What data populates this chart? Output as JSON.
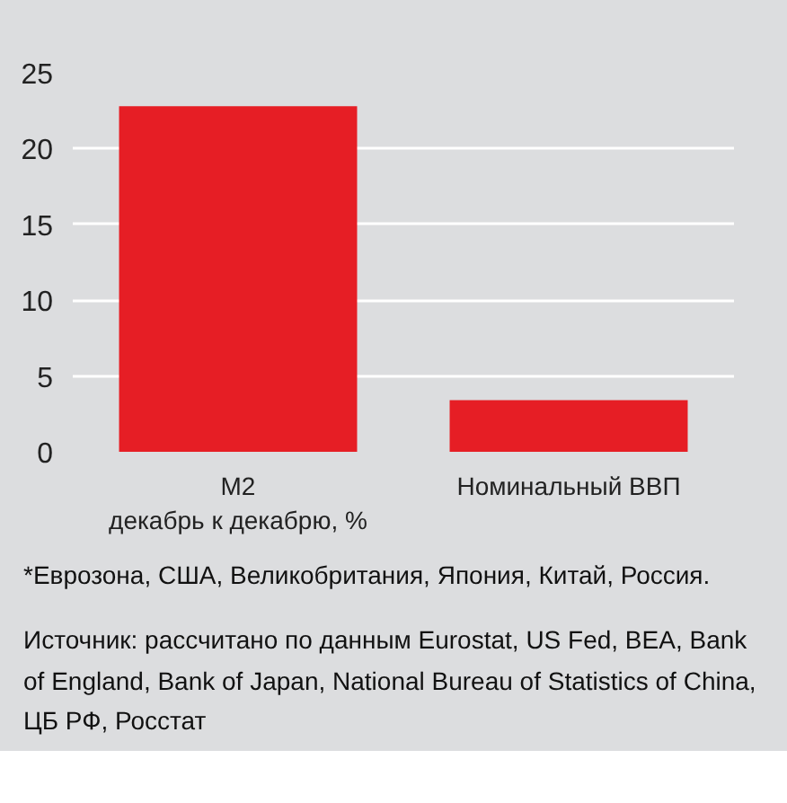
{
  "chart_data": {
    "type": "bar",
    "categories": [
      "M2\nдекабрь к декабрю, %",
      "Номинальный ВВП"
    ],
    "values": [
      22.8,
      3.4
    ],
    "color": "#e61e25",
    "ylim": [
      0,
      25
    ],
    "yticks": [
      0,
      5,
      10,
      15,
      20,
      25
    ],
    "grid": "y",
    "annotations": [
      "*Еврозона, США, Великобритания, Япония, Китай, Россия.",
      "Источник: рассчитано по данным Eurostat, US Fed, BEA, Bank of England, Bank of Japan, National Bureau of Statistics of China, ЦБ РФ, Росстат"
    ]
  }
}
